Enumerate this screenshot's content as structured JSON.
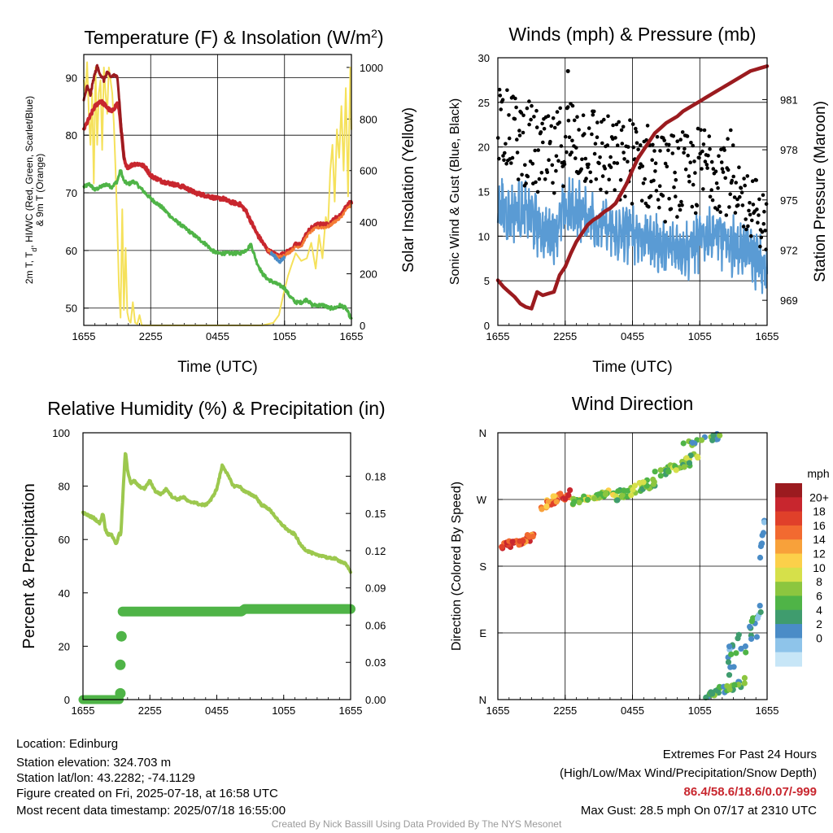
{
  "chart_data": [
    {
      "id": "temp",
      "type": "line",
      "title": "Temperature (F) & Insolation (W/m",
      "title_sup": "2",
      "title_tail": ")",
      "xlabel": "Time (UTC)",
      "ylabel_lines": [
        "2m T, T",
        "d",
        ", HI/WC (Red, Green, Scarlet/Blue)",
        "& 9m T (Orange)"
      ],
      "ylabel2": "Solar Insolation (Yellow)",
      "x_ticks": [
        "1655",
        "2255",
        "0455",
        "1055",
        "1655"
      ],
      "ylim": [
        47,
        94
      ],
      "y_ticks": [
        50,
        60,
        70,
        80,
        90
      ],
      "y2lim": [
        0,
        1050
      ],
      "y2_ticks": [
        0,
        200,
        400,
        600,
        800,
        1000
      ],
      "xlim": [
        0,
        24
      ],
      "grid": true,
      "series": [
        {
          "key": "solar",
          "color": "#f5e15b",
          "axis": "right",
          "width": 2,
          "x": [
            0,
            0.15,
            0.3,
            0.45,
            0.6,
            0.75,
            0.9,
            1.05,
            1.2,
            1.35,
            1.5,
            1.65,
            1.8,
            1.95,
            2.1,
            2.25,
            2.4,
            2.55,
            2.7,
            2.85,
            3.0,
            3.15,
            3.3,
            3.45,
            3.6,
            3.75,
            3.9,
            4.05,
            4.2,
            4.4,
            4.6,
            4.8,
            5.0,
            5.2,
            5.5,
            6.5,
            8,
            10,
            12,
            14,
            16,
            17,
            17.5,
            17.9,
            18.3,
            18.6,
            19.0,
            19.5,
            20.0,
            20.4,
            20.8,
            21.1,
            21.4,
            21.7,
            21.9,
            22.1,
            22.3,
            22.5,
            22.7,
            22.9,
            23.1,
            23.3,
            23.5,
            23.7,
            23.9,
            24
          ],
          "y": [
            950,
            900,
            1020,
            820,
            700,
            900,
            550,
            1000,
            700,
            900,
            950,
            680,
            1000,
            900,
            820,
            1000,
            950,
            900,
            780,
            600,
            400,
            150,
            30,
            450,
            60,
            300,
            50,
            20,
            10,
            90,
            10,
            5,
            40,
            0,
            0,
            0,
            0,
            0,
            0,
            0,
            0,
            10,
            40,
            120,
            190,
            230,
            280,
            250,
            260,
            320,
            220,
            350,
            260,
            420,
            380,
            600,
            700,
            480,
            760,
            650,
            850,
            600,
            920,
            500,
            1000,
            760
          ]
        },
        {
          "key": "dewpoint",
          "color": "#4fb447",
          "axis": "left",
          "width": 3,
          "x": [
            0,
            0.5,
            1,
            1.5,
            2,
            2.5,
            3,
            3.3,
            3.6,
            4,
            4.5,
            5,
            5.5,
            6,
            7,
            8,
            9,
            10,
            11,
            11.5,
            12,
            12.5,
            13,
            14,
            14.5,
            15,
            15.5,
            16,
            16.5,
            17,
            17.5,
            18,
            18.5,
            19,
            19.5,
            20,
            20.5,
            21,
            21.5,
            22,
            22.5,
            23,
            23.5,
            24
          ],
          "y": [
            71,
            71.5,
            70.5,
            71,
            71.5,
            71,
            72,
            74,
            72,
            71.5,
            72,
            71,
            70,
            69,
            67.5,
            65.5,
            64,
            62.5,
            61,
            60,
            59.5,
            59.5,
            59.5,
            59.5,
            60,
            61,
            58,
            56,
            55,
            54.5,
            54,
            53.5,
            52,
            51,
            51,
            51.5,
            50.5,
            50.5,
            50.5,
            50,
            50,
            50.5,
            50,
            48
          ]
        },
        {
          "key": "temp_2m",
          "color": "#c8262e",
          "axis": "left",
          "width": 4,
          "x": [
            0,
            0.5,
            1,
            1.5,
            2,
            2.5,
            3,
            3.2,
            3.4,
            3.6,
            3.8,
            4,
            4.5,
            5,
            5.5,
            6,
            7,
            8,
            9,
            10,
            11,
            12,
            12.5,
            13,
            14,
            14.5,
            15,
            15.5,
            16,
            16.5,
            17,
            17.5,
            18,
            18.5,
            19,
            19.5,
            20,
            20.5,
            21,
            21.5,
            22,
            22.5,
            23,
            23.5,
            24
          ],
          "y": [
            81,
            83,
            85,
            86,
            85,
            84,
            85.5,
            84,
            80,
            76,
            74.5,
            74.5,
            75,
            75,
            74.5,
            73,
            72,
            71.5,
            71,
            70,
            69.5,
            69,
            69,
            68.5,
            68,
            67,
            65,
            63,
            61.5,
            60,
            59.5,
            59,
            59.5,
            60,
            61,
            61,
            63,
            64,
            64.5,
            64.5,
            64.5,
            65.5,
            66,
            67.5,
            68.5
          ]
        },
        {
          "key": "temp_9m",
          "color": "#f47b35",
          "axis": "left",
          "width": 2,
          "x": [
            16.5,
            17,
            17.5,
            18,
            18.5,
            19,
            19.5,
            20,
            20.5,
            21,
            21.5,
            22,
            22.5,
            23,
            23.5,
            24
          ],
          "y": [
            60,
            59.3,
            58.8,
            59.2,
            59.8,
            60.6,
            60.8,
            62.5,
            63.5,
            64,
            64,
            64.2,
            65,
            65.6,
            67,
            68
          ]
        },
        {
          "key": "heat_index",
          "color": "#9b1b1f",
          "axis": "left",
          "width": 3,
          "x": [
            0,
            0.3,
            0.6,
            0.9,
            1.2,
            1.5,
            1.8,
            2.1,
            2.4,
            2.7,
            3.0,
            3.2,
            3.4,
            3.6
          ],
          "y": [
            86,
            88.5,
            87,
            90,
            92,
            90.5,
            89.5,
            91,
            90,
            90.5,
            90,
            86,
            80,
            76
          ]
        },
        {
          "key": "wind_chill",
          "color": "#4a8cc7",
          "axis": "left",
          "width": 3,
          "x": [
            16.8,
            17.2,
            17.6,
            18.0
          ],
          "y": [
            59.5,
            58.8,
            58.0,
            58.8
          ]
        }
      ]
    },
    {
      "id": "wind",
      "type": "scatter",
      "title": "Winds (mph) & Pressure (mb)",
      "xlabel": "Time (UTC)",
      "ylabel": "Sonic Wind & Gust (Blue, Black)",
      "ylabel2": "Station Pressure (Maroon)",
      "x_ticks": [
        "1655",
        "2255",
        "0455",
        "1055",
        "1655"
      ],
      "ylim": [
        0,
        30
      ],
      "y_ticks": [
        0,
        5,
        10,
        15,
        20,
        25,
        30
      ],
      "y2lim": [
        967.5,
        983.5
      ],
      "y2_ticks": [
        969,
        972,
        975,
        978,
        981
      ],
      "xlim": [
        0,
        24
      ],
      "grid": true,
      "gust_color": "#000000",
      "wind_color": "#5a9bd4",
      "pressure_color": "#9b1b1f",
      "max_gust": {
        "x": 6.25,
        "y": 28.5
      },
      "wind_base": {
        "x": [
          0,
          1,
          2,
          3,
          4,
          5,
          6,
          7,
          8,
          9,
          10,
          11,
          12,
          13,
          14,
          15,
          16,
          17,
          18,
          19,
          20,
          21,
          22,
          23,
          24
        ],
        "y": [
          13.5,
          12.5,
          13,
          12,
          10.5,
          10.5,
          13,
          13,
          12.5,
          11.5,
          10.5,
          10,
          10.5,
          10,
          9.5,
          8.5,
          9,
          8.5,
          9.5,
          10.5,
          9.5,
          9,
          8.5,
          7.5,
          5.5
        ]
      },
      "pressure": {
        "x": [
          0,
          0.5,
          1,
          1.5,
          2,
          2.5,
          3,
          3.5,
          4,
          4.5,
          5,
          5.5,
          6,
          6.5,
          7,
          7.5,
          8,
          8.5,
          9,
          9.5,
          10,
          10.5,
          11,
          11.5,
          12,
          12.5,
          13,
          13.5,
          14,
          14.5,
          15,
          15.5,
          16,
          16.5,
          17,
          17.5,
          18,
          18.5,
          19,
          19.5,
          20,
          20.5,
          21,
          21.5,
          22,
          22.5,
          23,
          23.5,
          24
        ],
        "y": [
          970.2,
          969.8,
          969.5,
          969.2,
          968.8,
          968.6,
          968.5,
          969.5,
          969.3,
          969.4,
          969.5,
          970.5,
          971.0,
          971.8,
          972.5,
          973.0,
          973.5,
          973.8,
          974.0,
          974.3,
          974.5,
          974.8,
          975.4,
          976.0,
          976.8,
          977.5,
          978.0,
          978.5,
          979.0,
          979.3,
          979.6,
          979.8,
          980.0,
          980.3,
          980.5,
          980.7,
          980.9,
          981.1,
          981.3,
          981.5,
          981.7,
          981.9,
          982.1,
          982.3,
          982.5,
          982.7,
          982.8,
          982.9,
          983.0
        ]
      }
    },
    {
      "id": "rh",
      "type": "line",
      "title": "Relative Humidity (%) & Precipitation (in)",
      "ylabel": "Percent & Precipitation",
      "x_ticks": [
        "1655",
        "2255",
        "0455",
        "1055",
        "1655"
      ],
      "ylim": [
        0,
        100
      ],
      "y_ticks": [
        0,
        20,
        40,
        60,
        80,
        100
      ],
      "y2lim": [
        0,
        0.215
      ],
      "y2_ticks": [
        "0.00",
        "0.03",
        "0.06",
        "0.09",
        "0.12",
        "0.15",
        "0.18"
      ],
      "xlim": [
        0,
        24
      ],
      "grid": false,
      "series": [
        {
          "key": "rh",
          "color": "#9cc84e",
          "width": 4,
          "x": [
            0,
            0.5,
            1,
            1.5,
            1.8,
            2.0,
            2.2,
            2.5,
            2.8,
            3.0,
            3.2,
            3.4,
            3.6,
            3.8,
            4.0,
            4.3,
            4.6,
            5.0,
            5.5,
            6.0,
            6.5,
            7,
            7.5,
            8,
            8.5,
            9,
            9.5,
            10,
            10.5,
            11,
            11.5,
            12,
            12.5,
            13,
            13.5,
            14,
            14.5,
            15,
            15.5,
            16,
            16.5,
            17,
            17.5,
            18,
            18.5,
            19,
            19.5,
            20,
            20.5,
            21,
            21.5,
            22,
            22.5,
            23,
            23.5,
            24
          ],
          "y": [
            70,
            69,
            68,
            66,
            70,
            64,
            62,
            62,
            60,
            58,
            62,
            62,
            78,
            93,
            86,
            81,
            82,
            80,
            79,
            82,
            78,
            77,
            79,
            76,
            75,
            76,
            74,
            74,
            73,
            73,
            75,
            79,
            88,
            84,
            80,
            80,
            78,
            77,
            76,
            73,
            72,
            70,
            67,
            65,
            63,
            62,
            58,
            56,
            55,
            54,
            54,
            53,
            53,
            52,
            51,
            48
          ]
        },
        {
          "key": "precip",
          "color": "#4fb447",
          "width": 12,
          "axis": "right",
          "x": [
            0,
            3.2,
            3.35,
            3.5,
            14.2,
            14.5,
            24
          ],
          "y": [
            0,
            0,
            0.007,
            0.071,
            0.071,
            0.073,
            0.073
          ]
        }
      ],
      "precip_dots": {
        "x": [
          3.35,
          3.35,
          3.45
        ],
        "y": [
          0.005,
          0.028,
          0.051
        ]
      }
    },
    {
      "id": "dir",
      "type": "scatter",
      "title": "Wind Direction",
      "ylabel": "Direction (Colored By Speed)",
      "x_ticks": [
        "1655",
        "2255",
        "0455",
        "1055",
        "1655"
      ],
      "y_ticks": [
        "N",
        "E",
        "S",
        "W",
        "N"
      ],
      "ylim": [
        0,
        360
      ],
      "xlim": [
        0,
        24
      ],
      "grid": true,
      "clusters": [
        {
          "x0": 0.2,
          "x1": 3.2,
          "d0": 200,
          "d1": 225,
          "s0": 13,
          "s1": 19,
          "n": 34
        },
        {
          "x0": 3.8,
          "x1": 6.5,
          "d0": 255,
          "d1": 285,
          "s0": 11,
          "s1": 18,
          "n": 30
        },
        {
          "x0": 6.5,
          "x1": 10.5,
          "d0": 262,
          "d1": 285,
          "s0": 6,
          "s1": 12,
          "n": 40
        },
        {
          "x0": 10.5,
          "x1": 14.0,
          "d0": 268,
          "d1": 300,
          "s0": 5,
          "s1": 10,
          "n": 36
        },
        {
          "x0": 14.0,
          "x1": 18.0,
          "d0": 298,
          "d1": 335,
          "s0": 5,
          "s1": 10,
          "n": 34
        },
        {
          "x0": 16.5,
          "x1": 19.8,
          "d0": 340,
          "d1": 360,
          "s0": 3,
          "s1": 9,
          "n": 18
        },
        {
          "x0": 18.5,
          "x1": 22.0,
          "d0": 0,
          "d1": 30,
          "s0": 3,
          "s1": 9,
          "n": 30
        },
        {
          "x0": 20.5,
          "x1": 23.5,
          "d0": 30,
          "d1": 130,
          "s0": 2,
          "s1": 7,
          "n": 30
        },
        {
          "x0": 23.3,
          "x1": 24.0,
          "d0": 180,
          "d1": 260,
          "s0": 2,
          "s1": 6,
          "n": 8
        }
      ],
      "colorbar": {
        "title": "mph",
        "labels": [
          "20+",
          "18",
          "16",
          "14",
          "12",
          "10",
          "8",
          "6",
          "4",
          "2",
          "0"
        ],
        "colors": [
          "#9b1b1f",
          "#c8262e",
          "#e0402a",
          "#f26a30",
          "#f8a13a",
          "#fcd04a",
          "#d6e04a",
          "#8cc63f",
          "#4fb447",
          "#3f9c6e",
          "#4a8cc7",
          "#8ec4ea",
          "#c7e6f7"
        ]
      }
    }
  ],
  "info": {
    "location": "Location: Edinburg",
    "elevation": "Station elevation: 324.703 m",
    "latlon": "Station lat/lon: 43.2282; -74.1129",
    "created": "Figure created on Fri, 2025-07-18, at 16:58 UTC",
    "recent": "Most recent data timestamp: 2025/07/18 16:55:00"
  },
  "extremes": {
    "title": "Extremes For Past 24 Hours",
    "subtitle": "(High/Low/Max Wind/Precipitation/Snow Depth)",
    "values": "86.4/58.6/18.6/0.07/-999",
    "max_gust": "Max Gust: 28.5 mph On 07/17 at 2310 UTC"
  },
  "credit": "Created By Nick Bassill Using Data Provided By The NYS Mesonet"
}
